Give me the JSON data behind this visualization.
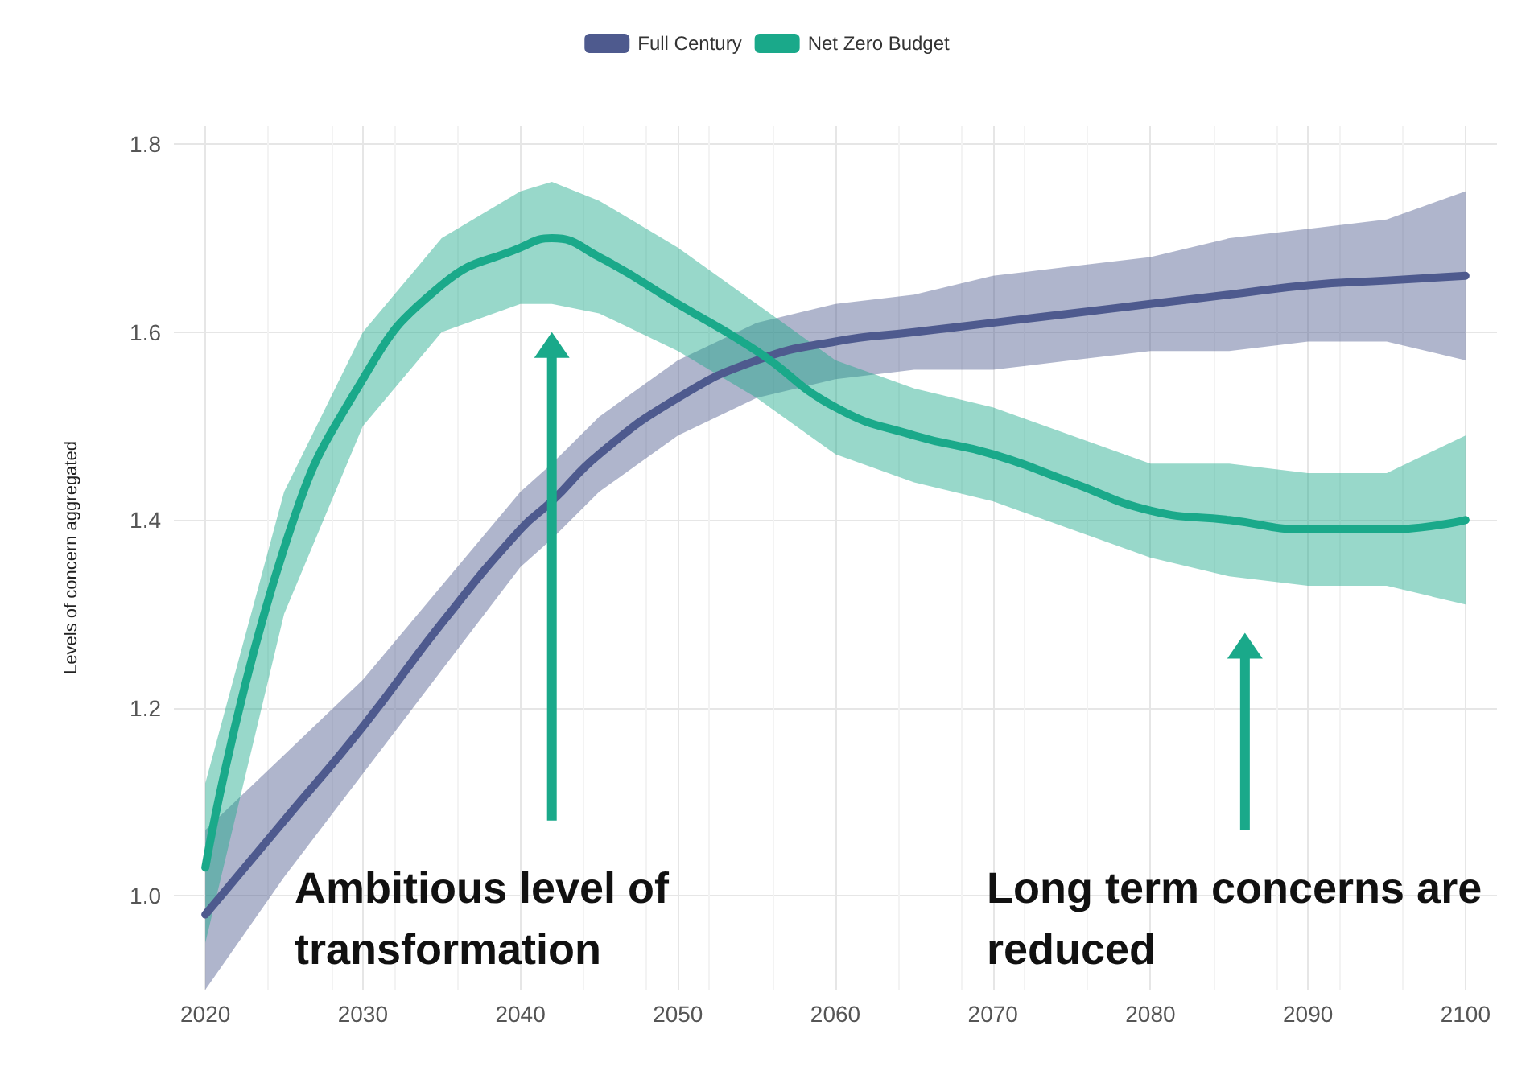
{
  "chart_data": {
    "type": "line",
    "ylabel": "Levels of concern aggregated",
    "x": [
      2020,
      2025,
      2030,
      2035,
      2040,
      2042,
      2045,
      2050,
      2055,
      2060,
      2065,
      2070,
      2075,
      2080,
      2085,
      2090,
      2095,
      2100
    ],
    "series": [
      {
        "name": "Full Century",
        "color": "#4e5a8e",
        "values": [
          0.98,
          1.08,
          1.18,
          1.29,
          1.39,
          1.42,
          1.47,
          1.53,
          1.57,
          1.59,
          1.6,
          1.61,
          1.62,
          1.63,
          1.64,
          1.65,
          1.655,
          1.66
        ],
        "lower": [
          0.9,
          1.02,
          1.13,
          1.24,
          1.35,
          1.38,
          1.43,
          1.49,
          1.53,
          1.55,
          1.56,
          1.56,
          1.57,
          1.58,
          1.58,
          1.59,
          1.59,
          1.57
        ],
        "upper": [
          1.07,
          1.15,
          1.23,
          1.33,
          1.43,
          1.46,
          1.51,
          1.57,
          1.61,
          1.63,
          1.64,
          1.66,
          1.67,
          1.68,
          1.7,
          1.71,
          1.72,
          1.75
        ]
      },
      {
        "name": "Net Zero Budget",
        "color": "#1aa98a",
        "values": [
          1.03,
          1.37,
          1.55,
          1.65,
          1.69,
          1.7,
          1.68,
          1.63,
          1.58,
          1.52,
          1.49,
          1.47,
          1.44,
          1.41,
          1.4,
          1.39,
          1.39,
          1.4
        ],
        "lower": [
          0.95,
          1.3,
          1.5,
          1.6,
          1.63,
          1.63,
          1.62,
          1.58,
          1.53,
          1.47,
          1.44,
          1.42,
          1.39,
          1.36,
          1.34,
          1.33,
          1.33,
          1.31
        ],
        "upper": [
          1.12,
          1.43,
          1.6,
          1.7,
          1.75,
          1.76,
          1.74,
          1.69,
          1.63,
          1.57,
          1.54,
          1.52,
          1.49,
          1.46,
          1.46,
          1.45,
          1.45,
          1.49
        ]
      }
    ],
    "xlim": [
      2018,
      2102
    ],
    "xticks": [
      2020,
      2030,
      2040,
      2050,
      2060,
      2070,
      2080,
      2090,
      2100
    ],
    "ylim": [
      0.9,
      1.82
    ],
    "yticks": [
      {
        "value": 1,
        "label": "1.0"
      },
      1.2,
      1.4,
      1.6,
      {
        "value": 1.8,
        "label": "1.8"
      }
    ],
    "grid": true,
    "legend": "top",
    "marker": "none",
    "line_style": "solid",
    "annotations": [
      "Ambitious level of transformation",
      "Long term concerns are reduced"
    ]
  }
}
